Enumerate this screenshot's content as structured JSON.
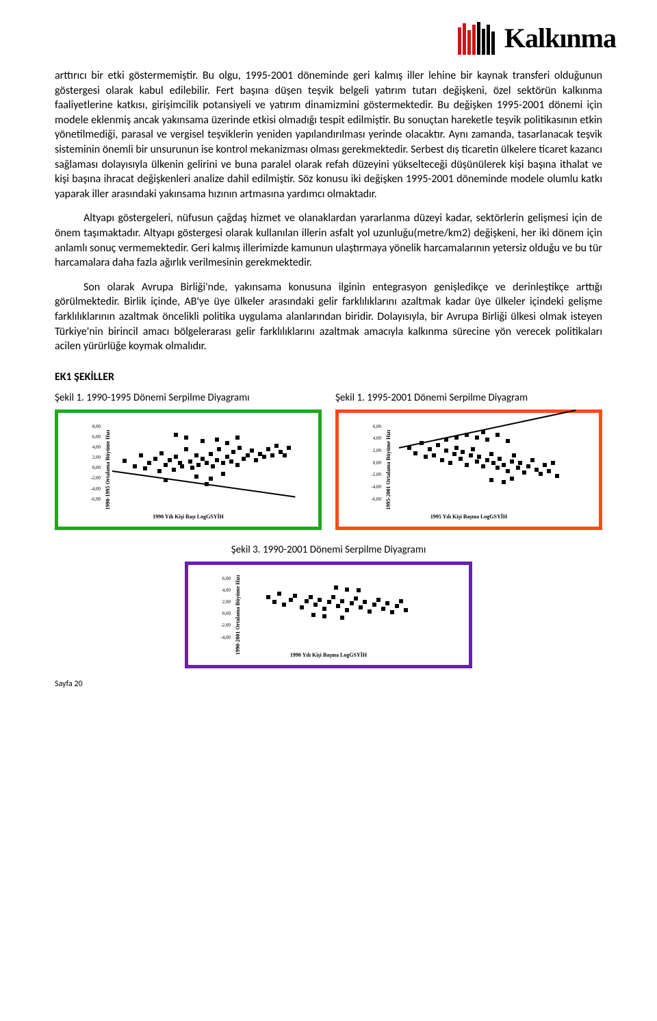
{
  "header": {
    "logo_name": "Kalkınma",
    "logo_bar_colors": [
      "#c91818",
      "#c91818",
      "#c91818",
      "#c91818",
      "#000000",
      "#000000",
      "#000000",
      "#000000"
    ]
  },
  "paragraphs": {
    "p1": "arttırıcı bir etki göstermemiştir. Bu olgu, 1995-2001 döneminde geri kalmış iller lehine bir kaynak transferi olduğunun göstergesi olarak kabul edilebilir. Fert başına düşen teşvik belgeli yatırım tutarı değişkeni, özel sektörün kalkınma faaliyetlerine katkısı, girişimcilik potansiyeli ve yatırım dinamizmini göstermektedir. Bu değişken 1995-2001 dönemi için modele eklenmiş ancak yakınsama üzerinde etkisi olmadığı tespit edilmiştir. Bu sonuçtan hareketle teşvik politikasının etkin yönetilmediği, parasal ve vergisel teşviklerin yeniden yapılandırılması yerinde olacaktır. Aynı zamanda, tasarlanacak teşvik sisteminin önemli bir unsurunun ise kontrol mekanizması olması gerekmektedir. Serbest dış ticaretin ülkelere ticaret kazancı sağlaması dolayısıyla ülkenin gelirini ve buna paralel olarak refah düzeyini yükselteceği düşünülerek kişi başına ithalat ve kişi başına ihracat değişkenleri analize dahil edilmiştir. Söz konusu iki değişken 1995-2001 döneminde modele olumlu katkı yaparak iller arasındaki yakınsama hızının artmasına yardımcı olmaktadır.",
    "p2": "Altyapı göstergeleri, nüfusun çağdaş hizmet ve olanaklardan yararlanma düzeyi kadar, sektörlerin gelişmesi için de önem taşımaktadır. Altyapı göstergesi olarak kullanılan illerin asfalt yol uzunluğu(metre/km2) değişkeni, her iki dönem için anlamlı sonuç vermemektedir. Geri kalmış illerimizde kamunun ulaştırmaya yönelik harcamalarının yetersiz olduğu ve bu tür harcamalara daha fazla ağırlık verilmesinin gerekmektedir.",
    "p3": "Son olarak Avrupa Birliği'nde, yakınsama konusuna ilginin entegrasyon genişledikçe ve derinleştikçe arttığı görülmektedir. Birlik içinde, AB'ye üye ülkeler arasındaki gelir farklılıklarını azaltmak kadar üye ülkeler içindeki gelişme farklılıklarının azaltmak öncelikli politika uygulama alanlarından biridir. Dolayısıyla, bir Avrupa Birliği ülkesi olmak isteyen Türkiye'nin birincil amacı bölgelerarası gelir farklılıklarını azaltmak amacıyla kalkınma sürecine yön verecek politikaları acilen yürürlüğe koymak olmalıdır."
  },
  "appendix_heading": "EK1 ŞEKİLLER",
  "figures": {
    "fig1": {
      "title": "Şekil 1. 1990-1995 Dönemi Serpilme Diyagramı",
      "type": "scatter",
      "border_color": "#1fa81f",
      "y_label": "1990-1995 Ortalama Büyüme Hızı",
      "x_label": "1990 Yılı Kişi Başı LogGSYİH",
      "ylim": [
        -6,
        8
      ],
      "yticks": [
        "8,00",
        "6,00",
        "4,00",
        "2,00",
        "0,00",
        "-2,00",
        "-4,00",
        "-6,00"
      ],
      "trend": {
        "slope_deg": 8,
        "left_pct": 5,
        "top_pct": 60,
        "width_pct": 90
      },
      "points": [
        [
          10,
          45
        ],
        [
          15,
          52
        ],
        [
          18,
          38
        ],
        [
          20,
          55
        ],
        [
          22,
          48
        ],
        [
          25,
          42
        ],
        [
          27,
          58
        ],
        [
          28,
          35
        ],
        [
          30,
          50
        ],
        [
          32,
          44
        ],
        [
          34,
          56
        ],
        [
          35,
          40
        ],
        [
          37,
          48
        ],
        [
          38,
          52
        ],
        [
          40,
          30
        ],
        [
          42,
          46
        ],
        [
          43,
          54
        ],
        [
          45,
          38
        ],
        [
          46,
          50
        ],
        [
          48,
          42
        ],
        [
          50,
          48
        ],
        [
          52,
          36
        ],
        [
          53,
          52
        ],
        [
          55,
          44
        ],
        [
          56,
          30
        ],
        [
          58,
          48
        ],
        [
          60,
          40
        ],
        [
          62,
          46
        ],
        [
          63,
          34
        ],
        [
          65,
          50
        ],
        [
          66,
          28
        ],
        [
          68,
          42
        ],
        [
          70,
          38
        ],
        [
          72,
          32
        ],
        [
          74,
          44
        ],
        [
          76,
          36
        ],
        [
          78,
          40
        ],
        [
          80,
          30
        ],
        [
          82,
          38
        ],
        [
          84,
          26
        ],
        [
          86,
          34
        ],
        [
          88,
          38
        ],
        [
          90,
          28
        ],
        [
          40,
          15
        ],
        [
          55,
          18
        ],
        [
          48,
          20
        ],
        [
          60,
          22
        ],
        [
          45,
          65
        ],
        [
          52,
          68
        ],
        [
          58,
          62
        ],
        [
          30,
          70
        ],
        [
          35,
          12
        ],
        [
          50,
          75
        ],
        [
          65,
          15
        ]
      ]
    },
    "fig2": {
      "title": "Şekil 1. 1995-2001 Dönemi Serpilme Diyagram",
      "type": "scatter",
      "border_color": "#ff4a1a",
      "y_label": "1995-2001 Ortalama Büyüme Hızı",
      "x_label": "1995 Yılı Kişi Başına LogGSYİH",
      "ylim": [
        -6,
        6
      ],
      "yticks": [
        "6,00",
        "4,00",
        "2,00",
        "0,00",
        "-2,00",
        "-4,00",
        "-6,00"
      ],
      "trend": {
        "slope_deg": -12,
        "left_pct": 8,
        "top_pct": 30,
        "width_pct": 88
      },
      "points": [
        [
          12,
          28
        ],
        [
          15,
          35
        ],
        [
          18,
          22
        ],
        [
          20,
          40
        ],
        [
          22,
          30
        ],
        [
          24,
          38
        ],
        [
          26,
          25
        ],
        [
          28,
          44
        ],
        [
          30,
          32
        ],
        [
          32,
          48
        ],
        [
          34,
          36
        ],
        [
          35,
          28
        ],
        [
          37,
          42
        ],
        [
          38,
          34
        ],
        [
          40,
          50
        ],
        [
          42,
          38
        ],
        [
          43,
          30
        ],
        [
          45,
          46
        ],
        [
          46,
          40
        ],
        [
          48,
          52
        ],
        [
          50,
          44
        ],
        [
          52,
          36
        ],
        [
          53,
          48
        ],
        [
          55,
          54
        ],
        [
          56,
          42
        ],
        [
          58,
          50
        ],
        [
          60,
          58
        ],
        [
          62,
          46
        ],
        [
          63,
          38
        ],
        [
          65,
          54
        ],
        [
          66,
          48
        ],
        [
          68,
          60
        ],
        [
          70,
          52
        ],
        [
          72,
          44
        ],
        [
          74,
          56
        ],
        [
          76,
          62
        ],
        [
          78,
          50
        ],
        [
          80,
          58
        ],
        [
          82,
          48
        ],
        [
          84,
          64
        ],
        [
          40,
          12
        ],
        [
          45,
          15
        ],
        [
          50,
          18
        ],
        [
          55,
          12
        ],
        [
          60,
          20
        ],
        [
          35,
          15
        ],
        [
          48,
          8
        ],
        [
          52,
          70
        ],
        [
          58,
          72
        ],
        [
          62,
          68
        ],
        [
          30,
          18
        ]
      ]
    },
    "fig3": {
      "title": "Şekil 3. 1990-2001 Dönemi Serpilme Diyagramı",
      "type": "scatter",
      "border_color": "#6a1fad",
      "y_label": "1990-2001 Ortalama Büyüme Hızı",
      "x_label": "1990 Yılı Kişi Başına LogGSYİH",
      "ylim": [
        -4,
        6
      ],
      "yticks": [
        "6,00",
        "4,00",
        "2,00",
        "0,00",
        "-2,00",
        "-4,00"
      ],
      "points": [
        [
          15,
          30
        ],
        [
          18,
          38
        ],
        [
          20,
          25
        ],
        [
          22,
          42
        ],
        [
          25,
          34
        ],
        [
          27,
          28
        ],
        [
          30,
          46
        ],
        [
          32,
          36
        ],
        [
          34,
          30
        ],
        [
          36,
          42
        ],
        [
          38,
          34
        ],
        [
          40,
          48
        ],
        [
          42,
          38
        ],
        [
          44,
          30
        ],
        [
          46,
          44
        ],
        [
          48,
          36
        ],
        [
          50,
          50
        ],
        [
          52,
          40
        ],
        [
          54,
          32
        ],
        [
          56,
          46
        ],
        [
          58,
          38
        ],
        [
          60,
          52
        ],
        [
          62,
          42
        ],
        [
          64,
          34
        ],
        [
          66,
          48
        ],
        [
          68,
          40
        ],
        [
          70,
          54
        ],
        [
          72,
          44
        ],
        [
          74,
          36
        ],
        [
          76,
          50
        ],
        [
          45,
          15
        ],
        [
          50,
          18
        ],
        [
          55,
          20
        ],
        [
          40,
          60
        ],
        [
          48,
          62
        ],
        [
          35,
          58
        ]
      ]
    }
  },
  "page_number": "Sayfa 20"
}
